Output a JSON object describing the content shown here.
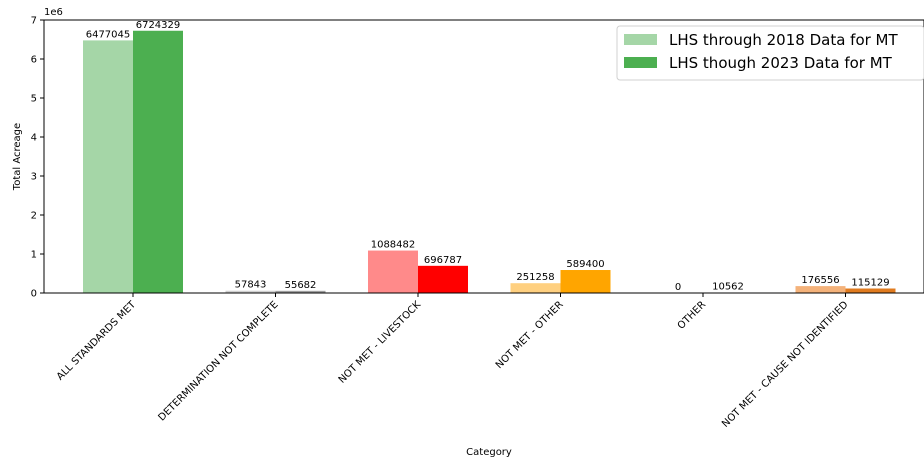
{
  "chart_data": {
    "type": "bar",
    "title": "",
    "xlabel": "Category",
    "ylabel": "Total Acreage",
    "y_scale_label": "1e6",
    "ylim": [
      0,
      7000000
    ],
    "yticks": [
      0,
      1,
      2,
      3,
      4,
      5,
      6,
      7
    ],
    "grid": false,
    "legend_position": "top-right",
    "categories": [
      "ALL STANDARDS MET",
      "DETERMINATION NOT COMPLETE",
      "NOT MET - LIVESTOCK",
      "NOT MET - OTHER",
      "OTHER",
      "NOT MET - CAUSE NOT IDENTIFIED"
    ],
    "series": [
      {
        "name": "LHS through 2018 Data for MT",
        "values": [
          6477045,
          57843,
          1088482,
          251258,
          0,
          176556
        ],
        "colors": [
          "#a5d6a7",
          "#cfcfcf",
          "#ff8a8a",
          "#ffd080",
          "#cfcfcf",
          "#f4b27a"
        ],
        "legend_color": "#a5d6a7"
      },
      {
        "name": "LHS though 2023 Data for MT",
        "values": [
          6724329,
          55682,
          696787,
          589400,
          10562,
          115129
        ],
        "colors": [
          "#4caf50",
          "#9e9e9e",
          "#ff0000",
          "#ffa500",
          "#9e9e9e",
          "#e07b1f"
        ],
        "legend_color": "#4caf50"
      }
    ]
  }
}
